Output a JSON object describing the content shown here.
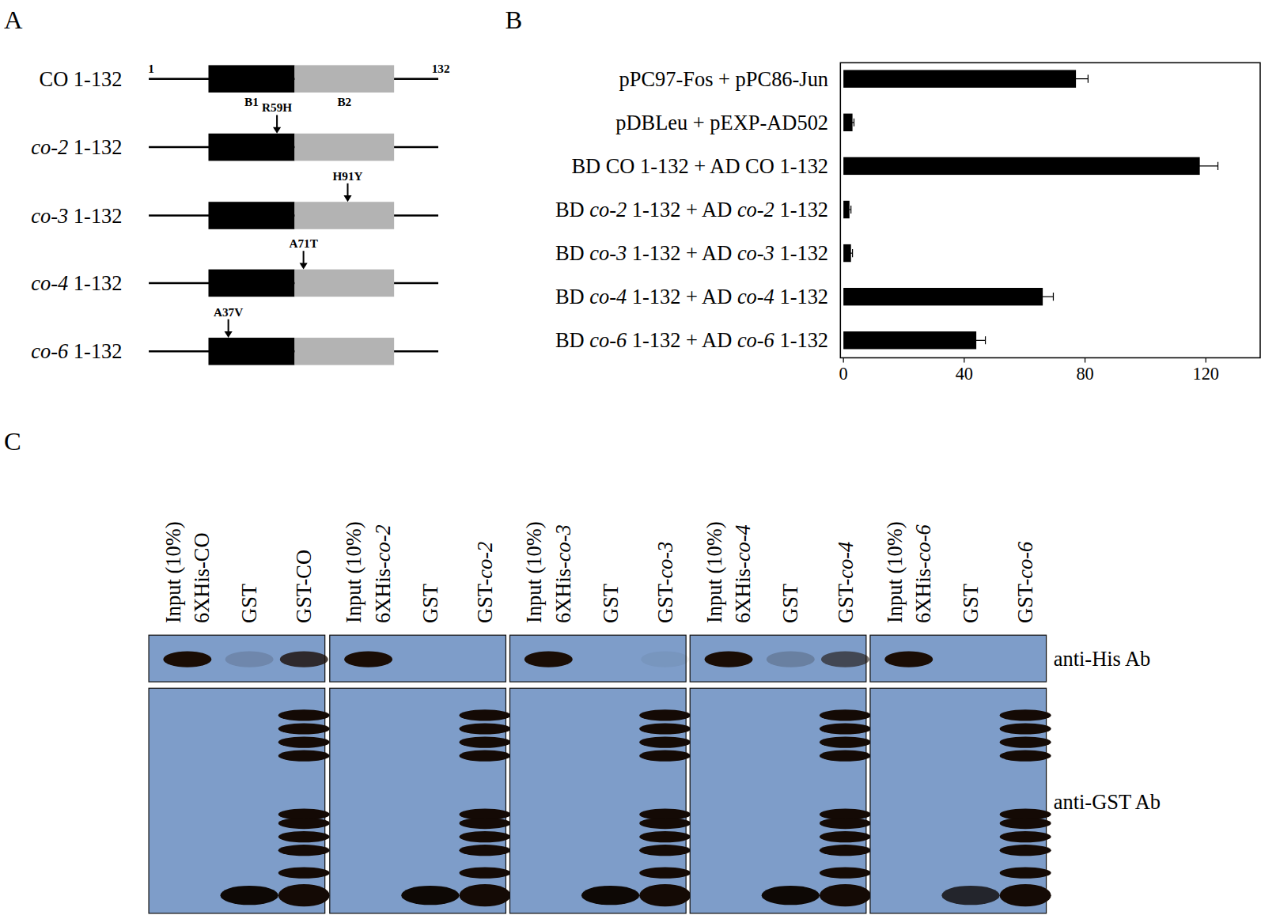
{
  "panel_labels": [
    "A",
    "B",
    "C"
  ],
  "diagram": {
    "start": 1,
    "end": 132,
    "domains": [
      {
        "label": "B1",
        "start": 28,
        "end": 67,
        "color": "#000000"
      },
      {
        "label": "B2",
        "start": 67,
        "end": 112,
        "color": "#b3b3b3"
      }
    ],
    "constructs": [
      {
        "label": "CO 1-132",
        "mutation": null
      },
      {
        "label": "co-2 1-132",
        "mutation": {
          "label": "R59H",
          "position": 59
        }
      },
      {
        "label": "co-3 1-132",
        "mutation": {
          "label": "H91Y",
          "position": 91
        }
      },
      {
        "label": "co-4 1-132",
        "mutation": {
          "label": "A71T",
          "position": 71
        }
      },
      {
        "label": "co-6 1-132",
        "mutation": {
          "label": "A37V",
          "position": 37
        }
      }
    ]
  },
  "chart_data": {
    "type": "bar",
    "orientation": "horizontal",
    "categories": [
      "pPC97-Fos + pPC86-Jun",
      "pDBLeu + pEXP-AD502",
      "BD CO 1-132 + AD CO 1-132",
      "BD co-2 1-132 + AD co-2 1-132",
      "BD co-3 1-132 + AD co-3 1-132",
      "BD co-4 1-132 + AD co-4 1-132",
      "BD co-6 1-132 + AD co-6 1-132"
    ],
    "values": [
      77,
      3,
      118,
      2,
      2.5,
      66,
      44
    ],
    "errors": [
      4,
      0.5,
      6,
      0.5,
      0.5,
      3.5,
      3
    ],
    "color": "#000000",
    "xlim": [
      -1,
      138
    ],
    "xticks": [
      0,
      40,
      80,
      120
    ]
  },
  "blot": {
    "rows": [
      "anti-His Ab",
      "anti-GST Ab"
    ],
    "groups": [
      {
        "lanes": [
          [
            "Input (10%)",
            "6XHis-CO"
          ],
          [
            "GST"
          ],
          [
            "GST-CO"
          ]
        ],
        "anti_his": [
          1,
          0.15,
          0.8
        ],
        "anti_gst": [
          0,
          1,
          1
        ]
      },
      {
        "lanes": [
          [
            "Input (10%)",
            "6XHis-co-2"
          ],
          [
            "GST"
          ],
          [
            "GST-co-2"
          ]
        ],
        "anti_his": [
          1,
          0,
          0
        ],
        "anti_gst": [
          0,
          1,
          1
        ]
      },
      {
        "lanes": [
          [
            "Input (10%)",
            "6XHis-co-3"
          ],
          [
            "GST"
          ],
          [
            "GST-co-3"
          ]
        ],
        "anti_his": [
          1,
          0,
          0.05
        ],
        "anti_gst": [
          0,
          1,
          1
        ]
      },
      {
        "lanes": [
          [
            "Input (10%)",
            "6XHis-co-4"
          ],
          [
            "GST"
          ],
          [
            "GST-co-4"
          ]
        ],
        "anti_his": [
          1,
          0.2,
          0.6
        ],
        "anti_gst": [
          0,
          1,
          1
        ]
      },
      {
        "lanes": [
          [
            "Input (10%)",
            "6XHis-co-6"
          ],
          [
            "GST"
          ],
          [
            "GST-co-6"
          ]
        ],
        "anti_his": [
          1,
          0,
          0
        ],
        "anti_gst": [
          0,
          0.8,
          1
        ]
      }
    ]
  }
}
